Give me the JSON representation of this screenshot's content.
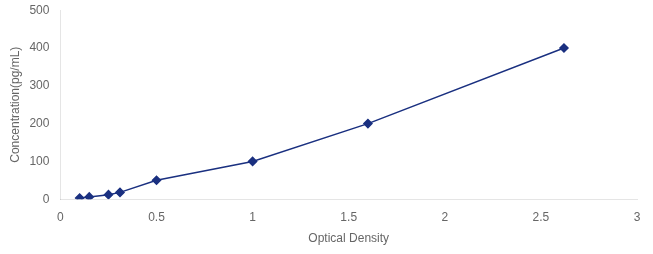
{
  "chart_data": {
    "type": "line",
    "x": [
      0.1,
      0.15,
      0.25,
      0.31,
      0.5,
      1.0,
      1.6,
      2.62
    ],
    "values": [
      3,
      6,
      12,
      18,
      50,
      100,
      200,
      400
    ],
    "color": "#1a3080",
    "marker": "diamond",
    "xlabel": "Optical Density",
    "ylabel": "Concentration(pg/mL)",
    "xlim": [
      0,
      3
    ],
    "ylim": [
      0,
      500
    ],
    "xticks": [
      0,
      0.5,
      1,
      1.5,
      2,
      2.5,
      3
    ],
    "yticks": [
      0,
      100,
      200,
      300,
      400,
      500
    ],
    "grid": false
  }
}
